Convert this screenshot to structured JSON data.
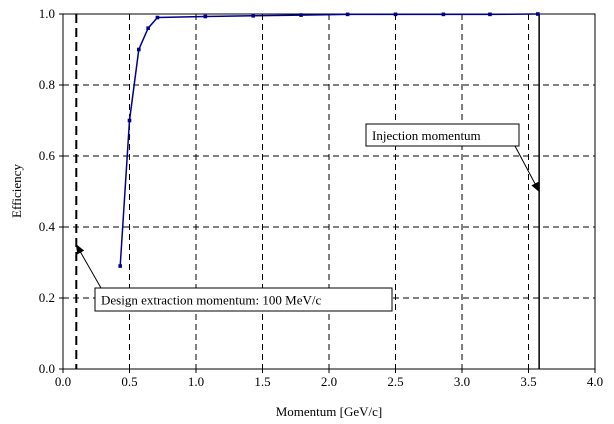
{
  "chart_data": {
    "type": "line",
    "xlabel": "Momentum [GeV/c]",
    "ylabel": "Efficiency",
    "xlim": [
      0.0,
      4.0
    ],
    "ylim": [
      0.0,
      1.0
    ],
    "x_ticks": [
      "0.0",
      "0.5",
      "1.0",
      "1.5",
      "2.0",
      "2.5",
      "3.0",
      "3.5",
      "4.0"
    ],
    "y_ticks": [
      "0.0",
      "0.2",
      "0.4",
      "0.6",
      "0.8",
      "1.0"
    ],
    "grid": true,
    "series": [
      {
        "color": "#00008b",
        "x": [
          0.43,
          0.5,
          0.57,
          0.64,
          0.71,
          1.07,
          1.43,
          1.79,
          2.14,
          2.5,
          2.86,
          3.21,
          3.57
        ],
        "y": [
          0.29,
          0.7,
          0.9,
          0.96,
          0.99,
          0.993,
          0.995,
          0.997,
          0.999,
          0.999,
          0.999,
          0.999,
          1.0
        ]
      }
    ],
    "vertical_lines": [
      {
        "x": 0.1,
        "style": "dashed"
      },
      {
        "x": 3.58,
        "style": "solid"
      }
    ],
    "annotations": [
      {
        "text": "Injection momentum",
        "points_to": {
          "x": 3.58,
          "y": 0.5
        }
      },
      {
        "text": "Design extraction momentum: 100 MeV/c",
        "points_to": {
          "x": 0.1,
          "y": 0.35
        }
      }
    ]
  }
}
